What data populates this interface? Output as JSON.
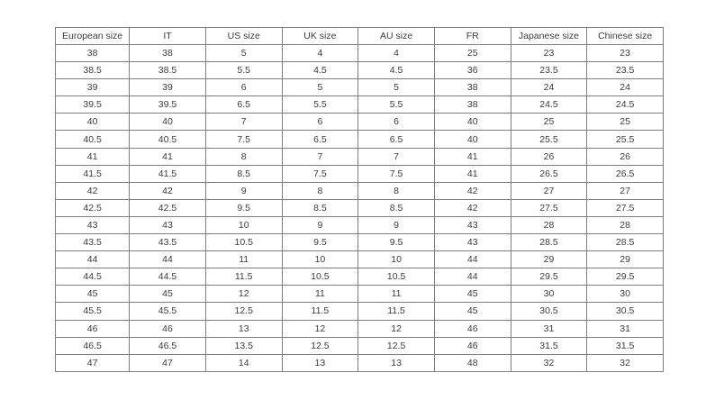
{
  "table": {
    "columns": [
      "European size",
      "IT",
      "US size",
      "UK size",
      "AU size",
      "FR",
      "Japanese size",
      "Chinese size"
    ],
    "rows": [
      [
        "38",
        "38",
        "5",
        "4",
        "4",
        "25",
        "23",
        "23"
      ],
      [
        "38.5",
        "38.5",
        "5.5",
        "4.5",
        "4.5",
        "36",
        "23.5",
        "23.5"
      ],
      [
        "39",
        "39",
        "6",
        "5",
        "5",
        "38",
        "24",
        "24"
      ],
      [
        "39.5",
        "39.5",
        "6.5",
        "5.5",
        "5.5",
        "38",
        "24.5",
        "24.5"
      ],
      [
        "40",
        "40",
        "7",
        "6",
        "6",
        "40",
        "25",
        "25"
      ],
      [
        "40.5",
        "40.5",
        "7.5",
        "6.5",
        "6.5",
        "40",
        "25.5",
        "25.5"
      ],
      [
        "41",
        "41",
        "8",
        "7",
        "7",
        "41",
        "26",
        "26"
      ],
      [
        "41.5",
        "41.5",
        "8.5",
        "7.5",
        "7.5",
        "41",
        "26.5",
        "26.5"
      ],
      [
        "42",
        "42",
        "9",
        "8",
        "8",
        "42",
        "27",
        "27"
      ],
      [
        "42.5",
        "42.5",
        "9.5",
        "8.5",
        "8.5",
        "42",
        "27.5",
        "27.5"
      ],
      [
        "43",
        "43",
        "10",
        "9",
        "9",
        "43",
        "28",
        "28"
      ],
      [
        "43.5",
        "43.5",
        "10.5",
        "9.5",
        "9.5",
        "43",
        "28.5",
        "28.5"
      ],
      [
        "44",
        "44",
        "11",
        "10",
        "10",
        "44",
        "29",
        "29"
      ],
      [
        "44.5",
        "44.5",
        "11.5",
        "10.5",
        "10.5",
        "44",
        "29.5",
        "29.5"
      ],
      [
        "45",
        "45",
        "12",
        "11",
        "11",
        "45",
        "30",
        "30"
      ],
      [
        "45.5",
        "45.5",
        "12.5",
        "11.5",
        "11.5",
        "45",
        "30.5",
        "30.5"
      ],
      [
        "46",
        "46",
        "13",
        "12",
        "12",
        "46",
        "31",
        "31"
      ],
      [
        "46.5",
        "46.5",
        "13.5",
        "12.5",
        "12.5",
        "46",
        "31.5",
        "31.5"
      ],
      [
        "47",
        "47",
        "14",
        "13",
        "13",
        "48",
        "32",
        "32"
      ]
    ],
    "colors": {
      "border": "#7f7f7f",
      "text": "#3c3c3c",
      "background": "#ffffff"
    }
  }
}
